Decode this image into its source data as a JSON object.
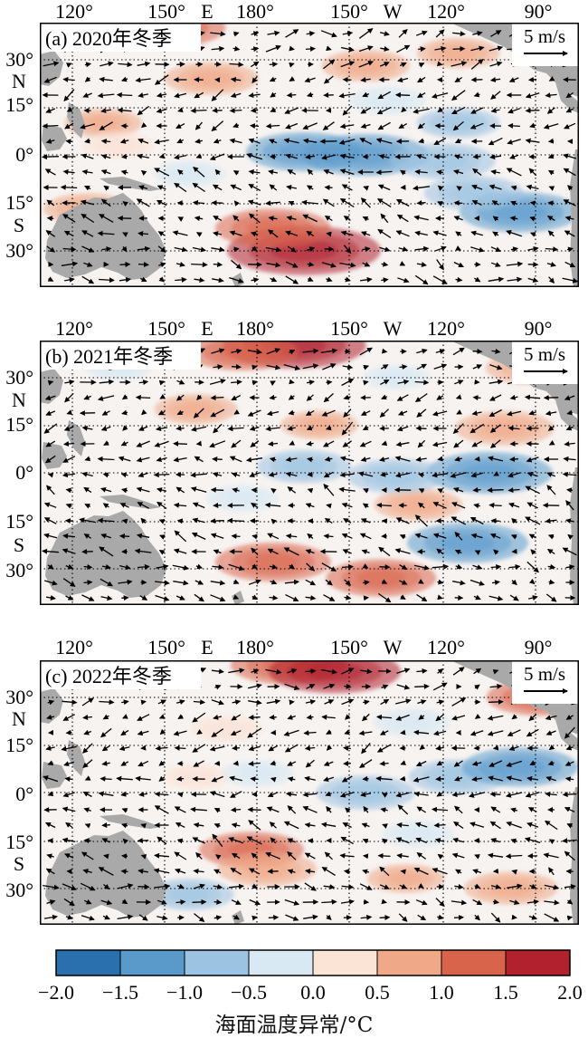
{
  "figure": {
    "panels": [
      {
        "id": "a",
        "title": "(a) 2020年冬季",
        "top_labels": [
          "120°",
          "150°",
          "E",
          "180°",
          "150°",
          "W",
          "120°",
          "90°"
        ],
        "lat_labels": [
          "30°",
          "N",
          "15°",
          "0°",
          "15°",
          "S",
          "30°"
        ],
        "scale_label": "5 m/s",
        "sst_anomalies": [
          {
            "lon": 195,
            "lat": -30,
            "value": 1.9
          },
          {
            "lon": 185,
            "lat": -23,
            "value": 1.2
          },
          {
            "lon": 165,
            "lat": 24,
            "value": 0.8
          },
          {
            "lon": 215,
            "lat": 28,
            "value": 0.7
          },
          {
            "lon": 245,
            "lat": 32,
            "value": 0.6
          },
          {
            "lon": 130,
            "lat": 10,
            "value": 0.5
          },
          {
            "lon": 125,
            "lat": -17,
            "value": 0.7
          },
          {
            "lon": 150,
            "lat": 40,
            "value": 1.3
          },
          {
            "lon": 135,
            "lat": 3,
            "value": 0.4
          },
          {
            "lon": 215,
            "lat": 0,
            "value": -1.4
          },
          {
            "lon": 195,
            "lat": 1,
            "value": -1.2
          },
          {
            "lon": 240,
            "lat": -2,
            "value": -1.0
          },
          {
            "lon": 265,
            "lat": -18,
            "value": -1.3
          },
          {
            "lon": 250,
            "lat": -12,
            "value": -0.9
          },
          {
            "lon": 245,
            "lat": 10,
            "value": -0.6
          },
          {
            "lon": 222,
            "lat": 17,
            "value": -0.5
          },
          {
            "lon": 158,
            "lat": -6,
            "value": -0.4
          }
        ]
      },
      {
        "id": "b",
        "title": "(b) 2021年冬季",
        "top_labels": [
          "120°",
          "150°",
          "E",
          "180°",
          "150°",
          "W",
          "120°",
          "90°"
        ],
        "lat_labels": [
          "30°",
          "N",
          "15°",
          "0°",
          "15°",
          "S",
          "30°"
        ],
        "scale_label": "5 m/s",
        "sst_anomalies": [
          {
            "lon": 192,
            "lat": 40,
            "value": 1.7
          },
          {
            "lon": 175,
            "lat": 38,
            "value": 1.1
          },
          {
            "lon": 185,
            "lat": -28,
            "value": 1.2
          },
          {
            "lon": 220,
            "lat": -33,
            "value": 1.1
          },
          {
            "lon": 160,
            "lat": 20,
            "value": 0.6
          },
          {
            "lon": 200,
            "lat": 15,
            "value": 0.5
          },
          {
            "lon": 260,
            "lat": 14,
            "value": 0.9
          },
          {
            "lon": 270,
            "lat": 33,
            "value": 0.9
          },
          {
            "lon": 232,
            "lat": -10,
            "value": 0.7
          },
          {
            "lon": 255,
            "lat": 0,
            "value": -1.4
          },
          {
            "lon": 225,
            "lat": -1,
            "value": -0.9
          },
          {
            "lon": 195,
            "lat": 2,
            "value": -0.8
          },
          {
            "lon": 248,
            "lat": -22,
            "value": -1.3
          },
          {
            "lon": 175,
            "lat": -8,
            "value": -0.4
          },
          {
            "lon": 225,
            "lat": 30,
            "value": -0.3
          },
          {
            "lon": 135,
            "lat": 33,
            "value": -0.3
          }
        ]
      },
      {
        "id": "c",
        "title": "(c) 2022年冬季",
        "top_labels": [
          "120°",
          "150°",
          "E",
          "180°",
          "150°",
          "W",
          "120°",
          "90°"
        ],
        "lat_labels": [
          "30°",
          "N",
          "15°",
          "0°",
          "15°",
          "S",
          "30°"
        ],
        "scale_label": "5 m/s",
        "sst_anomalies": [
          {
            "lon": 190,
            "lat": 40,
            "value": 1.2
          },
          {
            "lon": 205,
            "lat": 38,
            "value": 1.5
          },
          {
            "lon": 170,
            "lat": 20,
            "value": 0.4
          },
          {
            "lon": 178,
            "lat": -18,
            "value": 1.0
          },
          {
            "lon": 183,
            "lat": -24,
            "value": 0.9
          },
          {
            "lon": 272,
            "lat": 30,
            "value": 1.1
          },
          {
            "lon": 262,
            "lat": -30,
            "value": 0.8
          },
          {
            "lon": 228,
            "lat": -27,
            "value": 0.5
          },
          {
            "lon": 160,
            "lat": 5,
            "value": 0.3
          },
          {
            "lon": 215,
            "lat": 0,
            "value": -0.9
          },
          {
            "lon": 245,
            "lat": 5,
            "value": -0.9
          },
          {
            "lon": 265,
            "lat": 8,
            "value": -1.2
          },
          {
            "lon": 230,
            "lat": 22,
            "value": -0.5
          },
          {
            "lon": 180,
            "lat": 6,
            "value": -0.4
          },
          {
            "lon": 158,
            "lat": -32,
            "value": -0.7
          },
          {
            "lon": 232,
            "lat": -13,
            "value": -0.4
          }
        ]
      }
    ]
  },
  "colorbar": {
    "ticks": [
      "−2.0",
      "−1.5",
      "−1.0",
      "−0.5",
      "0.0",
      "0.5",
      "1.0",
      "1.5",
      "2.0"
    ],
    "values": [
      -2.0,
      -1.5,
      -1.0,
      -0.5,
      0.0,
      0.5,
      1.0,
      1.5,
      2.0
    ],
    "colors": [
      "#2a6fae",
      "#5a9acb",
      "#9cc3e1",
      "#d9e9f3",
      "#fbe3d6",
      "#efa988",
      "#d9644c",
      "#b1222e"
    ],
    "title": "海面温度异常/°C"
  },
  "colors": {
    "land": "#a9a9a9",
    "ocean_neutral": "#f7f3f1",
    "warm": "#c63c35",
    "cool": "#2f77b6"
  }
}
